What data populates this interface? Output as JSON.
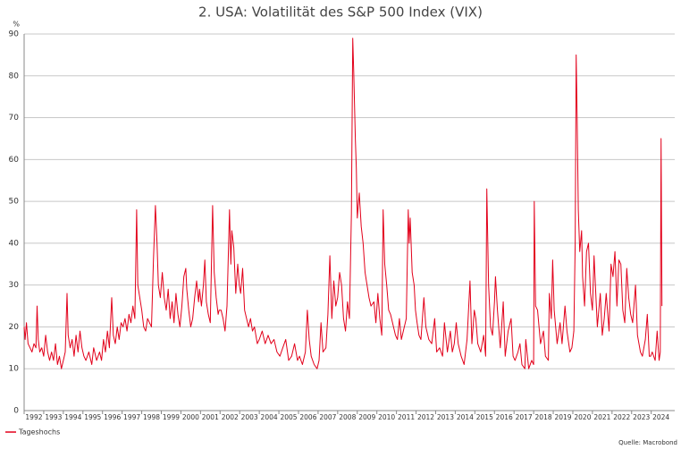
{
  "chart_data": {
    "type": "line",
    "title": "2. USA: Volatilität des S&P 500 Index (VIX)",
    "ylabel": "%",
    "source": "Quelle: Macrobond",
    "xlim": [
      1992,
      2025.2
    ],
    "xticks": [
      1992,
      1993,
      1994,
      1995,
      1996,
      1997,
      1998,
      1999,
      2000,
      2001,
      2002,
      2003,
      2004,
      2005,
      2006,
      2007,
      2008,
      2009,
      2010,
      2011,
      2012,
      2013,
      2014,
      2015,
      2016,
      2017,
      2018,
      2019,
      2020,
      2021,
      2022,
      2023,
      2024
    ],
    "ylim": [
      0,
      90
    ],
    "yticks": [
      0,
      10,
      20,
      30,
      40,
      50,
      60,
      70,
      80,
      90
    ],
    "grid": true,
    "x": [
      1992.0,
      1992.05,
      1992.12,
      1992.2,
      1992.3,
      1992.4,
      1992.5,
      1992.6,
      1992.66,
      1992.72,
      1992.8,
      1992.9,
      1993.0,
      1993.1,
      1993.2,
      1993.3,
      1993.4,
      1993.5,
      1993.6,
      1993.7,
      1993.8,
      1993.9,
      1994.0,
      1994.1,
      1994.19,
      1994.25,
      1994.35,
      1994.45,
      1994.55,
      1994.65,
      1994.75,
      1994.85,
      1994.95,
      1995.05,
      1995.15,
      1995.3,
      1995.45,
      1995.55,
      1995.7,
      1995.85,
      1995.95,
      1996.05,
      1996.15,
      1996.25,
      1996.35,
      1996.47,
      1996.55,
      1996.65,
      1996.75,
      1996.85,
      1996.95,
      1997.05,
      1997.15,
      1997.25,
      1997.35,
      1997.45,
      1997.55,
      1997.65,
      1997.74,
      1997.8,
      1997.9,
      1998.0,
      1998.1,
      1998.2,
      1998.3,
      1998.4,
      1998.5,
      1998.6,
      1998.7,
      1998.78,
      1998.85,
      1998.95,
      1999.05,
      1999.15,
      1999.25,
      1999.35,
      1999.45,
      1999.55,
      1999.65,
      1999.75,
      1999.85,
      1999.95,
      2000.05,
      2000.15,
      2000.25,
      2000.3,
      2000.4,
      2000.5,
      2000.6,
      2000.7,
      2000.8,
      2000.9,
      2000.95,
      2001.05,
      2001.15,
      2001.22,
      2001.3,
      2001.4,
      2001.5,
      2001.62,
      2001.7,
      2001.8,
      2001.9,
      2001.95,
      2002.05,
      2002.15,
      2002.25,
      2002.35,
      2002.48,
      2002.55,
      2002.6,
      2002.7,
      2002.8,
      2002.9,
      2002.98,
      2003.05,
      2003.15,
      2003.25,
      2003.35,
      2003.45,
      2003.55,
      2003.65,
      2003.75,
      2003.9,
      2004.0,
      2004.15,
      2004.3,
      2004.45,
      2004.6,
      2004.75,
      2004.9,
      2005.05,
      2005.2,
      2005.35,
      2005.5,
      2005.65,
      2005.8,
      2005.95,
      2006.05,
      2006.2,
      2006.35,
      2006.45,
      2006.55,
      2006.65,
      2006.8,
      2006.95,
      2007.05,
      2007.15,
      2007.25,
      2007.4,
      2007.5,
      2007.6,
      2007.7,
      2007.8,
      2007.9,
      2008.0,
      2008.1,
      2008.2,
      2008.3,
      2008.4,
      2008.5,
      2008.6,
      2008.7,
      2008.77,
      2008.82,
      2008.9,
      2008.95,
      2009.0,
      2009.1,
      2009.2,
      2009.3,
      2009.4,
      2009.5,
      2009.6,
      2009.7,
      2009.85,
      2009.95,
      2010.05,
      2010.15,
      2010.25,
      2010.32,
      2010.4,
      2010.5,
      2010.6,
      2010.7,
      2010.85,
      2010.95,
      2011.05,
      2011.15,
      2011.25,
      2011.35,
      2011.5,
      2011.6,
      2011.65,
      2011.7,
      2011.8,
      2011.9,
      2011.97,
      2012.05,
      2012.15,
      2012.25,
      2012.4,
      2012.5,
      2012.65,
      2012.8,
      2012.95,
      2013.05,
      2013.2,
      2013.35,
      2013.45,
      2013.6,
      2013.75,
      2013.85,
      2013.95,
      2014.05,
      2014.15,
      2014.3,
      2014.45,
      2014.6,
      2014.75,
      2014.85,
      2014.97,
      2015.05,
      2015.15,
      2015.3,
      2015.45,
      2015.55,
      2015.61,
      2015.7,
      2015.8,
      2015.9,
      2016.0,
      2016.05,
      2016.15,
      2016.3,
      2016.45,
      2016.55,
      2016.7,
      2016.85,
      2016.95,
      2017.05,
      2017.2,
      2017.3,
      2017.4,
      2017.55,
      2017.6,
      2017.75,
      2017.9,
      2018.0,
      2018.03,
      2018.1,
      2018.2,
      2018.35,
      2018.5,
      2018.6,
      2018.75,
      2018.8,
      2018.9,
      2018.97,
      2019.05,
      2019.2,
      2019.35,
      2019.45,
      2019.6,
      2019.7,
      2019.85,
      2019.95,
      2020.05,
      2020.12,
      2020.17,
      2020.22,
      2020.28,
      2020.35,
      2020.45,
      2020.5,
      2020.6,
      2020.7,
      2020.8,
      2020.9,
      2021.0,
      2021.08,
      2021.15,
      2021.25,
      2021.4,
      2021.5,
      2021.6,
      2021.7,
      2021.85,
      2021.95,
      2022.05,
      2022.15,
      2022.25,
      2022.35,
      2022.45,
      2022.55,
      2022.65,
      2022.75,
      2022.85,
      2022.95,
      2023.05,
      2023.2,
      2023.3,
      2023.45,
      2023.55,
      2023.7,
      2023.8,
      2023.9,
      2023.97,
      2024.05,
      2024.2,
      2024.3,
      2024.4,
      2024.46,
      2024.5,
      2024.55
    ],
    "series": [
      {
        "name": "Tageshochs",
        "color": "#e2001a",
        "values": [
          20,
          17,
          21,
          16,
          15,
          14,
          16,
          15,
          25,
          17,
          14,
          15,
          13,
          18,
          14,
          12,
          14,
          12,
          16,
          11,
          13,
          10,
          12,
          14,
          28,
          18,
          15,
          17,
          13,
          18,
          14,
          19,
          15,
          13,
          12,
          14,
          11,
          15,
          12,
          14,
          12,
          17,
          14,
          19,
          15,
          27,
          18,
          16,
          20,
          17,
          21,
          20,
          22,
          19,
          23,
          21,
          25,
          22,
          48,
          30,
          27,
          24,
          20,
          19,
          22,
          21,
          20,
          36,
          49,
          40,
          30,
          27,
          33,
          27,
          24,
          29,
          22,
          26,
          21,
          28,
          23,
          20,
          25,
          32,
          34,
          29,
          24,
          20,
          22,
          27,
          31,
          26,
          29,
          25,
          30,
          36,
          26,
          23,
          21,
          49,
          33,
          27,
          23,
          24,
          24,
          22,
          19,
          25,
          48,
          35,
          43,
          39,
          28,
          35,
          30,
          28,
          34,
          24,
          22,
          20,
          22,
          19,
          20,
          16,
          17,
          19,
          16,
          18,
          16,
          17,
          14,
          13,
          15,
          17,
          12,
          13,
          16,
          12,
          13,
          11,
          14,
          24,
          17,
          13,
          11,
          10,
          12,
          21,
          14,
          15,
          23,
          37,
          22,
          31,
          25,
          27,
          33,
          30,
          22,
          19,
          26,
          22,
          47,
          89,
          81,
          65,
          58,
          46,
          52,
          44,
          40,
          33,
          30,
          27,
          25,
          26,
          21,
          28,
          22,
          18,
          48,
          35,
          30,
          24,
          23,
          20,
          18,
          17,
          22,
          17,
          19,
          22,
          48,
          40,
          46,
          33,
          30,
          24,
          21,
          18,
          17,
          27,
          20,
          17,
          16,
          22,
          14,
          15,
          13,
          21,
          14,
          19,
          14,
          16,
          21,
          16,
          13,
          11,
          17,
          31,
          16,
          24,
          22,
          16,
          14,
          18,
          13,
          53,
          30,
          20,
          18,
          26,
          32,
          24,
          15,
          26,
          13,
          19,
          22,
          13,
          12,
          14,
          16,
          11,
          10,
          17,
          10,
          12,
          11,
          50,
          25,
          24,
          16,
          19,
          13,
          12,
          28,
          22,
          36,
          24,
          16,
          21,
          16,
          25,
          19,
          14,
          15,
          19,
          40,
          85,
          70,
          48,
          38,
          43,
          32,
          25,
          38,
          40,
          28,
          24,
          37,
          30,
          20,
          28,
          18,
          22,
          28,
          19,
          35,
          32,
          38,
          25,
          36,
          35,
          24,
          21,
          34,
          27,
          23,
          21,
          30,
          18,
          14,
          13,
          17,
          23,
          13,
          13,
          14,
          12,
          19,
          12,
          14,
          65,
          25
        ]
      }
    ]
  }
}
